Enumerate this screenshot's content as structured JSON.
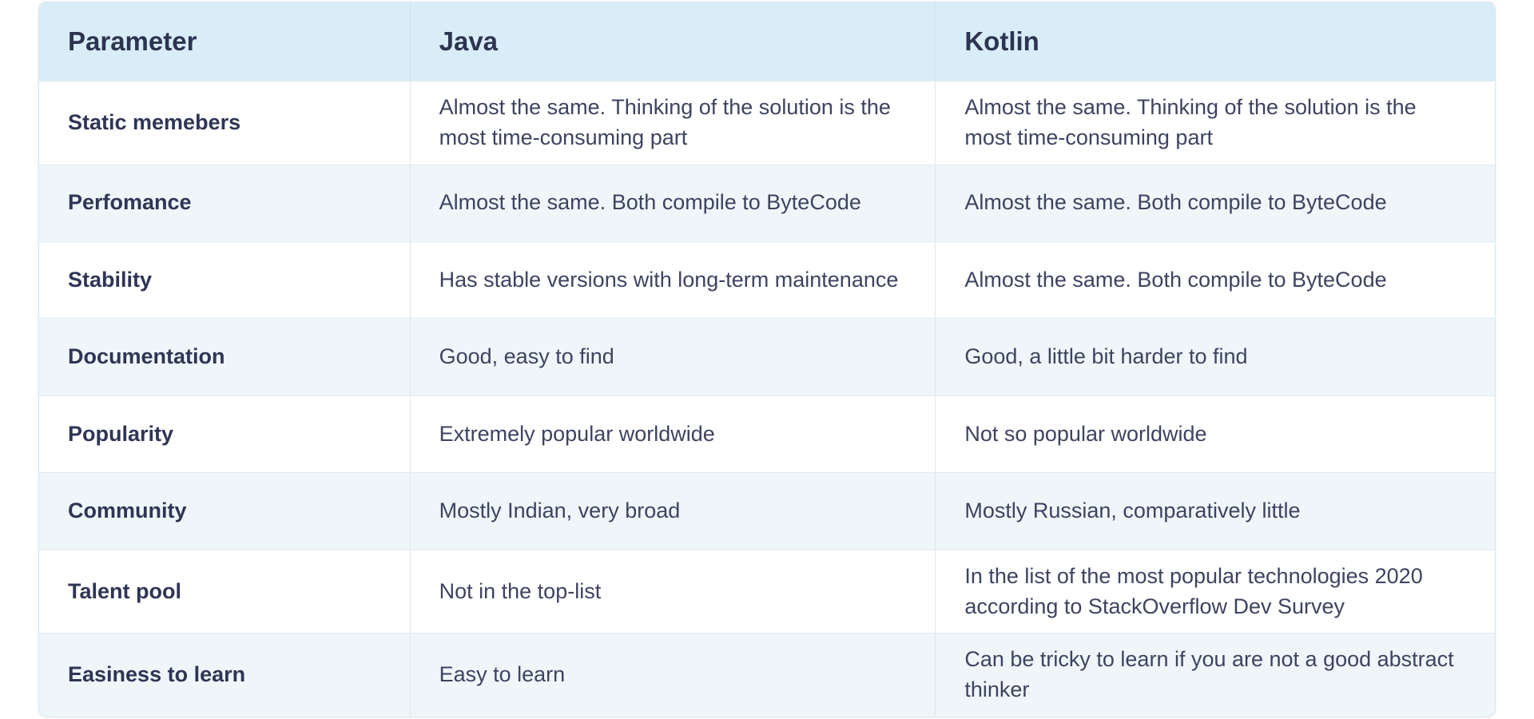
{
  "table": {
    "columns": [
      "Parameter",
      "Java",
      "Kotlin"
    ],
    "rows": [
      {
        "parameter": "Static memebers",
        "java": "Almost the same. Thinking of the solution is the most time-consuming part",
        "kotlin": "Almost the same. Thinking of the solution is the most time-consuming part"
      },
      {
        "parameter": "Perfomance",
        "java": "Almost the same. Both compile to ByteCode",
        "kotlin": "Almost the same. Both compile to ByteCode"
      },
      {
        "parameter": "Stability",
        "java": "Has stable versions with long-term maintenance",
        "kotlin": "Almost the same. Both compile to ByteCode"
      },
      {
        "parameter": "Documentation",
        "java": "Good, easy to find",
        "kotlin": "Good, a little bit harder to find"
      },
      {
        "parameter": "Popularity",
        "java": "Extremely popular worldwide",
        "kotlin": "Not so popular worldwide"
      },
      {
        "parameter": "Community",
        "java": "Mostly Indian, very broad",
        "kotlin": "Mostly Russian, comparatively little"
      },
      {
        "parameter": "Talent pool",
        "java": "Not in the top-list",
        "kotlin": "In the list of the most popular technologies 2020 according to StackOverflow Dev Survey"
      },
      {
        "parameter": "Easiness to learn",
        "java": "Easy to learn",
        "kotlin": "Can be tricky to learn if you are not a good abstract thinker"
      }
    ]
  },
  "colors": {
    "header_background": "#d9edf8",
    "alt_row_background": "#eef6fa",
    "row_background": "#ffffff",
    "body_text": "#3e4360",
    "heading_text": "#2d3452",
    "border": "#e2e7ea",
    "outer_border": "#d9e7ef"
  }
}
